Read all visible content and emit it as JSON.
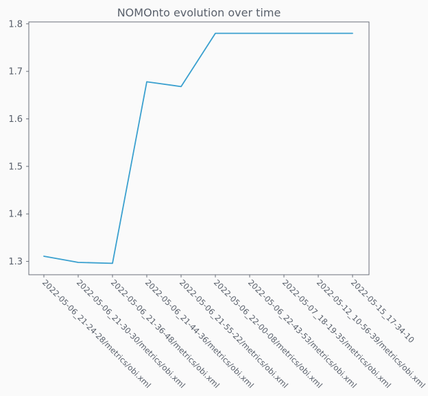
{
  "chart_data": {
    "type": "line",
    "title": "NOMOnto evolution over time",
    "xlabel": "",
    "ylabel": "",
    "categories": [
      "2022-05-06_21-24-28/metrics/obi.xml",
      "2022-05-06_21-30-30/metrics/obi.xml",
      "2022-05-06_21-36-48/metrics/obi.xml",
      "2022-05-06_21-44-36/metrics/obi.xml",
      "2022-05-06_21-55-22/metrics/obi.xml",
      "2022-05-06_22-00-08/metrics/obi.xml",
      "2022-05-06_22-43-53/metrics/obi.xml",
      "2022-05-07_18-19-35/metrics/obi.xml",
      "2022-05-12_10-56-39/metrics/obi.xml",
      "2022-05-15_17-34-10"
    ],
    "series": [
      {
        "values": [
          1.311,
          1.298,
          1.296,
          1.678,
          1.668,
          1.78,
          1.78,
          1.78,
          1.78,
          1.78
        ],
        "color": "#3aa0cf"
      }
    ],
    "yticks": [
      1.3,
      1.4,
      1.5,
      1.6,
      1.7,
      1.8
    ],
    "ytick_labels": [
      "1.3",
      "1.4",
      "1.5",
      "1.6",
      "1.7",
      "1.8"
    ],
    "ylim": [
      1.272,
      1.804
    ],
    "grid": false,
    "axis_color": "#59606b"
  }
}
